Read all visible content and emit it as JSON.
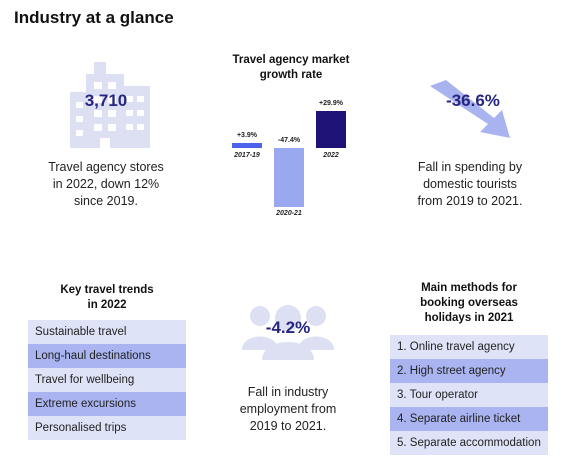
{
  "page": {
    "title": "Industry at a glance"
  },
  "stores": {
    "value": "3,710",
    "caption_lines": [
      "Travel agency stores",
      "in 2022, down 12%",
      "since 2019."
    ]
  },
  "growth_chart": {
    "title_lines": [
      "Travel agency market",
      "growth rate"
    ]
  },
  "chart_data": {
    "type": "bar",
    "title": "Travel agency market growth rate",
    "categories": [
      "2017-19",
      "2020-21",
      "2022"
    ],
    "values": [
      3.9,
      -47.4,
      29.9
    ],
    "value_labels": [
      "+3.9%",
      "-47.4%",
      "+29.9%"
    ],
    "ylim": [
      -47.4,
      29.9
    ],
    "grid": false,
    "colors": [
      "#4a63e8",
      "#9aa8ef",
      "#1e1277"
    ]
  },
  "spending": {
    "value": "-36.6%",
    "caption_lines": [
      "Fall in spending by",
      "domestic tourists",
      "from 2019 to 2021."
    ]
  },
  "trends": {
    "title_lines": [
      "Key travel trends",
      "in 2022"
    ],
    "items": [
      "Sustainable travel",
      "Long-haul destinations",
      "Travel for wellbeing",
      "Extreme excursions",
      "Personalised trips"
    ]
  },
  "employment": {
    "value": "-4.2%",
    "caption_lines": [
      "Fall in industry",
      "employment from",
      "2019 to 2021."
    ]
  },
  "booking": {
    "title_lines": [
      "Main methods for",
      "booking overseas",
      "holidays in 2021"
    ],
    "items": [
      "1. Online travel agency",
      "2. High street agency",
      "3. Tour operator",
      "4. Separate airline ticket",
      "5. Separate accommodation"
    ]
  },
  "colors": {
    "navy_text": "#262680",
    "icon_light": "#dde0f3",
    "row_light": "#dfe3f7",
    "row_dark": "#aab4f1"
  }
}
